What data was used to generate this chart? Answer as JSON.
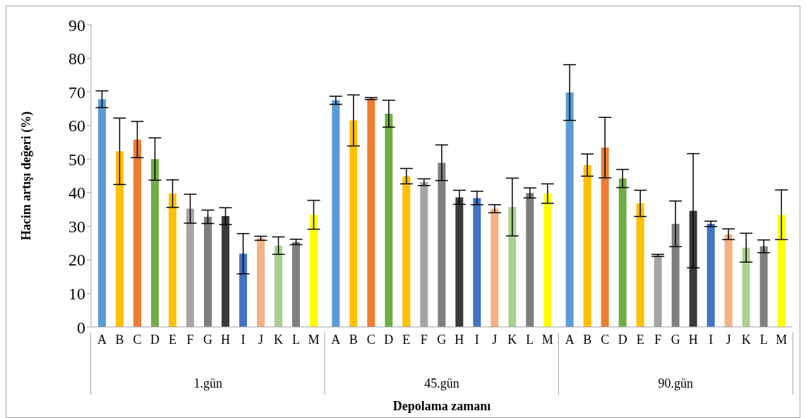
{
  "chart_data": {
    "type": "bar",
    "xlabel": "Depolama zamanı",
    "ylabel": "Hacim artışı değeri (%)",
    "categories": [
      "1.gün",
      "45.gün",
      "90.gün"
    ],
    "ylim": [
      0,
      90
    ],
    "yticks": [
      0,
      10,
      20,
      30,
      40,
      50,
      60,
      70,
      80,
      90
    ],
    "series": [
      {
        "name": "A",
        "color": "#5b9bd5",
        "values": [
          67.8,
          67.5,
          69.8
        ],
        "errors": [
          2.5,
          1.2,
          8.3
        ]
      },
      {
        "name": "B",
        "color": "#ffc000",
        "values": [
          52.3,
          61.5,
          48.2
        ],
        "errors": [
          9.9,
          7.6,
          3.3
        ]
      },
      {
        "name": "C",
        "color": "#ed7d31",
        "values": [
          55.8,
          68.0,
          53.4
        ],
        "errors": [
          5.4,
          0.3,
          9.0
        ]
      },
      {
        "name": "D",
        "color": "#70ad47",
        "values": [
          50.0,
          63.5,
          44.2
        ],
        "errors": [
          6.3,
          4.0,
          2.7
        ]
      },
      {
        "name": "E",
        "color": "#ffc000",
        "values": [
          39.7,
          44.9,
          36.8
        ],
        "errors": [
          4.1,
          2.3,
          3.9
        ]
      },
      {
        "name": "F",
        "color": "#a5a5a5",
        "values": [
          35.2,
          43.1,
          21.3
        ],
        "errors": [
          4.3,
          1.0,
          0.3
        ]
      },
      {
        "name": "G",
        "color": "#7f7f7f",
        "values": [
          32.8,
          48.9,
          30.7
        ],
        "errors": [
          2.0,
          5.3,
          6.8
        ]
      },
      {
        "name": "H",
        "color": "#3a3a3a",
        "values": [
          33.0,
          38.6,
          34.6
        ],
        "errors": [
          2.5,
          2.1,
          17.0
        ]
      },
      {
        "name": "I",
        "color": "#4472c4",
        "values": [
          21.8,
          38.4,
          30.7
        ],
        "errors": [
          6.0,
          2.0,
          0.8
        ]
      },
      {
        "name": "J",
        "color": "#f4b183",
        "values": [
          26.4,
          35.2,
          27.6
        ],
        "errors": [
          0.6,
          1.2,
          1.6
        ]
      },
      {
        "name": "K",
        "color": "#a9d18e",
        "values": [
          24.2,
          35.7,
          23.6
        ],
        "errors": [
          2.6,
          8.6,
          4.3
        ]
      },
      {
        "name": "L",
        "color": "#7f7f7f",
        "values": [
          25.3,
          39.9,
          24.0
        ],
        "errors": [
          0.8,
          1.5,
          1.9
        ]
      },
      {
        "name": "M",
        "color": "#ffff00",
        "values": [
          33.4,
          39.7,
          33.4
        ],
        "errors": [
          4.3,
          2.9,
          7.4
        ]
      }
    ]
  }
}
